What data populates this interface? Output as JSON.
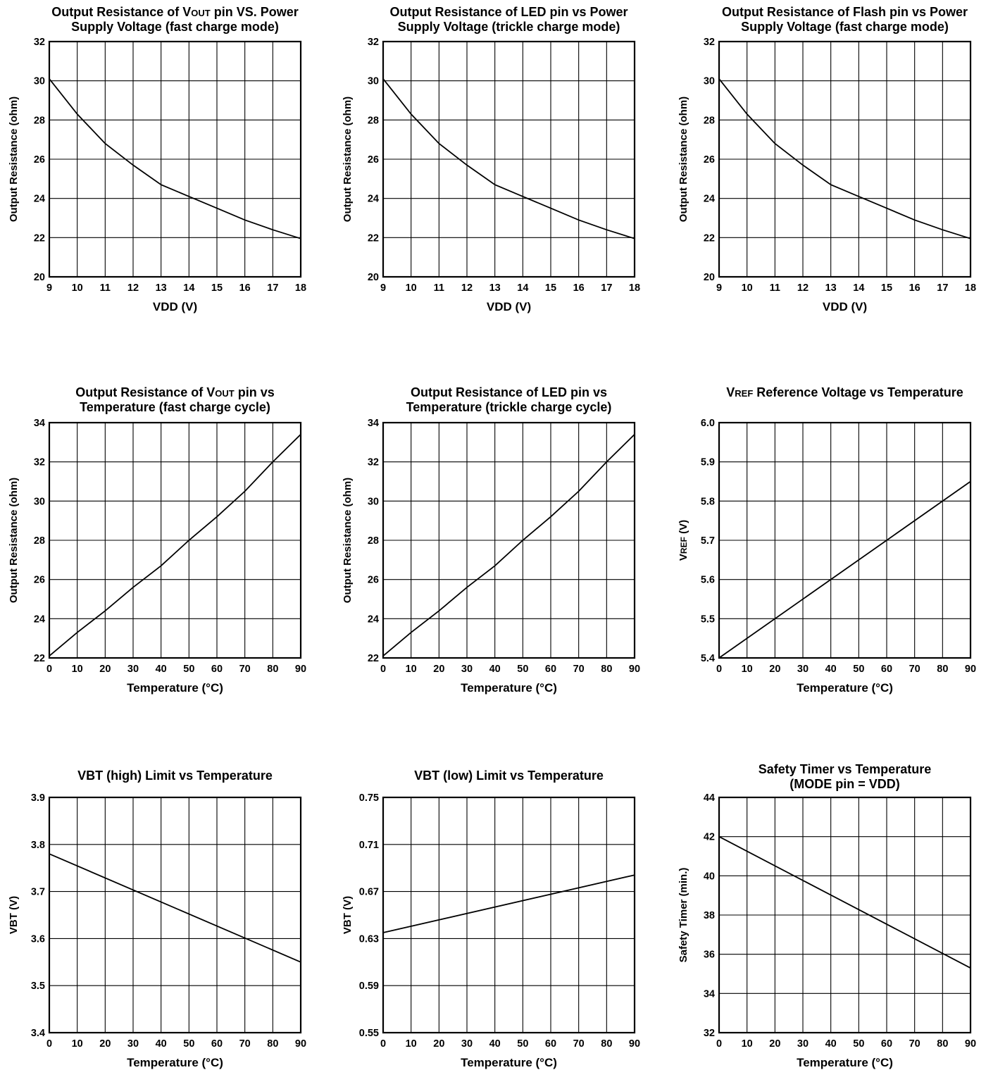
{
  "chart_data": [
    {
      "type": "line",
      "title_lines": [
        {
          "parts": [
            {
              "t": "Output Resistance of V"
            },
            {
              "t": "OUT",
              "sc": true
            },
            {
              "t": " pin VS. Power"
            }
          ]
        },
        {
          "parts": [
            {
              "t": "Supply Voltage (fast charge mode)"
            }
          ]
        }
      ],
      "xlabel": "VDD (V)",
      "ylabel": [
        {
          "t": "Output Resistance (ohm)"
        }
      ],
      "xlim": [
        9,
        18
      ],
      "ylim": [
        20,
        32
      ],
      "xticks": [
        "9",
        "10",
        "11",
        "12",
        "13",
        "14",
        "15",
        "16",
        "17",
        "18"
      ],
      "yticks": [
        "20",
        "22",
        "24",
        "26",
        "28",
        "30",
        "32"
      ],
      "grid": true,
      "series": [
        {
          "x": [
            9,
            10,
            11,
            12,
            13,
            14,
            15,
            16,
            17,
            18
          ],
          "y": [
            30.1,
            28.3,
            26.8,
            25.7,
            24.7,
            24.1,
            23.5,
            22.9,
            22.4,
            21.95
          ]
        }
      ]
    },
    {
      "type": "line",
      "title_lines": [
        {
          "parts": [
            {
              "t": "Output Resistance of LED pin vs Power"
            }
          ]
        },
        {
          "parts": [
            {
              "t": "Supply Voltage (trickle charge mode)"
            }
          ]
        }
      ],
      "xlabel": "VDD (V)",
      "ylabel": [
        {
          "t": "Output Resistance (ohm)"
        }
      ],
      "xlim": [
        9,
        18
      ],
      "ylim": [
        20,
        32
      ],
      "xticks": [
        "9",
        "10",
        "11",
        "12",
        "13",
        "14",
        "15",
        "16",
        "17",
        "18"
      ],
      "yticks": [
        "20",
        "22",
        "24",
        "26",
        "28",
        "30",
        "32"
      ],
      "grid": true,
      "series": [
        {
          "x": [
            9,
            10,
            11,
            12,
            13,
            14,
            15,
            16,
            17,
            18
          ],
          "y": [
            30.1,
            28.3,
            26.8,
            25.7,
            24.7,
            24.1,
            23.5,
            22.9,
            22.4,
            21.95
          ]
        }
      ]
    },
    {
      "type": "line",
      "title_lines": [
        {
          "parts": [
            {
              "t": "Output Resistance of Flash pin vs Power"
            }
          ]
        },
        {
          "parts": [
            {
              "t": "Supply Voltage (fast charge mode)"
            }
          ]
        }
      ],
      "xlabel": "VDD (V)",
      "ylabel": [
        {
          "t": "Output Resistance (ohm)"
        }
      ],
      "xlim": [
        9,
        18
      ],
      "ylim": [
        20,
        32
      ],
      "xticks": [
        "9",
        "10",
        "11",
        "12",
        "13",
        "14",
        "15",
        "16",
        "17",
        "18"
      ],
      "yticks": [
        "20",
        "22",
        "24",
        "26",
        "28",
        "30",
        "32"
      ],
      "grid": true,
      "series": [
        {
          "x": [
            9,
            10,
            11,
            12,
            13,
            14,
            15,
            16,
            17,
            18
          ],
          "y": [
            30.1,
            28.3,
            26.8,
            25.7,
            24.7,
            24.1,
            23.5,
            22.9,
            22.4,
            21.95
          ]
        }
      ]
    },
    {
      "type": "line",
      "title_lines": [
        {
          "parts": [
            {
              "t": "Output Resistance of V"
            },
            {
              "t": "OUT",
              "sc": true
            },
            {
              "t": " pin vs"
            }
          ]
        },
        {
          "parts": [
            {
              "t": "Temperature (fast charge cycle)"
            }
          ]
        }
      ],
      "xlabel": "Temperature (°C)",
      "ylabel": [
        {
          "t": "Output Resistance (ohm)"
        }
      ],
      "xlim": [
        0,
        90
      ],
      "ylim": [
        22,
        34
      ],
      "xticks": [
        "0",
        "10",
        "20",
        "30",
        "40",
        "50",
        "60",
        "70",
        "80",
        "90"
      ],
      "yticks": [
        "22",
        "24",
        "26",
        "28",
        "30",
        "32",
        "34"
      ],
      "grid": true,
      "series": [
        {
          "x": [
            0,
            10,
            20,
            30,
            40,
            50,
            60,
            70,
            80,
            90
          ],
          "y": [
            22.1,
            23.3,
            24.4,
            25.6,
            26.7,
            28.0,
            29.2,
            30.5,
            32.0,
            33.4
          ]
        }
      ]
    },
    {
      "type": "line",
      "title_lines": [
        {
          "parts": [
            {
              "t": "Output Resistance of LED pin vs"
            }
          ]
        },
        {
          "parts": [
            {
              "t": "Temperature (trickle charge cycle)"
            }
          ]
        }
      ],
      "xlabel": "Temperature (°C)",
      "ylabel": [
        {
          "t": "Output Resistance (ohm)"
        }
      ],
      "xlim": [
        0,
        90
      ],
      "ylim": [
        22,
        34
      ],
      "xticks": [
        "0",
        "10",
        "20",
        "30",
        "40",
        "50",
        "60",
        "70",
        "80",
        "90"
      ],
      "yticks": [
        "22",
        "24",
        "26",
        "28",
        "30",
        "32",
        "34"
      ],
      "grid": true,
      "series": [
        {
          "x": [
            0,
            10,
            20,
            30,
            40,
            50,
            60,
            70,
            80,
            90
          ],
          "y": [
            22.1,
            23.3,
            24.4,
            25.6,
            26.7,
            28.0,
            29.2,
            30.5,
            32.0,
            33.4
          ]
        }
      ]
    },
    {
      "type": "line",
      "title_lines": [
        {
          "parts": [
            {
              "t": "V"
            },
            {
              "t": "REF",
              "sc": true
            },
            {
              "t": " Reference Voltage vs Temperature"
            }
          ]
        }
      ],
      "xlabel": "Temperature (°C)",
      "ylabel": [
        {
          "t": "V"
        },
        {
          "t": "REF",
          "sc": true
        },
        {
          "t": " (V)"
        }
      ],
      "xlim": [
        0,
        90
      ],
      "ylim": [
        5.4,
        6.0
      ],
      "xticks": [
        "0",
        "10",
        "20",
        "30",
        "40",
        "50",
        "60",
        "70",
        "80",
        "90"
      ],
      "yticks": [
        "5.4",
        "5.5",
        "5.6",
        "5.7",
        "5.8",
        "5.9",
        "6.0"
      ],
      "grid": true,
      "series": [
        {
          "x": [
            0,
            90
          ],
          "y": [
            5.4,
            5.85
          ]
        }
      ]
    },
    {
      "type": "line",
      "title_lines": [
        {
          "parts": [
            {
              "t": "VBT (high) Limit vs Temperature"
            }
          ]
        }
      ],
      "xlabel": "Temperature (°C)",
      "ylabel": [
        {
          "t": "VBT (V)"
        }
      ],
      "xlim": [
        0,
        90
      ],
      "ylim": [
        3.4,
        3.9
      ],
      "xticks": [
        "0",
        "10",
        "20",
        "30",
        "40",
        "50",
        "60",
        "70",
        "80",
        "90"
      ],
      "yticks": [
        "3.4",
        "3.5",
        "3.6",
        "3.7",
        "3.8",
        "3.9"
      ],
      "grid": true,
      "series": [
        {
          "x": [
            0,
            90
          ],
          "y": [
            3.78,
            3.55
          ]
        }
      ]
    },
    {
      "type": "line",
      "title_lines": [
        {
          "parts": [
            {
              "t": "VBT (low) Limit vs Temperature"
            }
          ]
        }
      ],
      "xlabel": "Temperature (°C)",
      "ylabel": [
        {
          "t": "VBT (V)"
        }
      ],
      "xlim": [
        0,
        90
      ],
      "ylim": [
        0.55,
        0.75
      ],
      "xticks": [
        "0",
        "10",
        "20",
        "30",
        "40",
        "50",
        "60",
        "70",
        "80",
        "90"
      ],
      "yticks": [
        "0.55",
        "0.59",
        "0.63",
        "0.67",
        "0.71",
        "0.75"
      ],
      "grid": true,
      "series": [
        {
          "x": [
            0,
            90
          ],
          "y": [
            0.635,
            0.684
          ]
        }
      ]
    },
    {
      "type": "line",
      "title_lines": [
        {
          "parts": [
            {
              "t": "Safety Timer vs Temperature"
            }
          ]
        },
        {
          "parts": [
            {
              "t": "(MODE pin = VDD)"
            }
          ]
        }
      ],
      "xlabel": "Temperature (°C)",
      "ylabel": [
        {
          "t": "Safety Timer (min.)"
        }
      ],
      "xlim": [
        0,
        90
      ],
      "ylim": [
        32,
        44
      ],
      "xticks": [
        "0",
        "10",
        "20",
        "30",
        "40",
        "50",
        "60",
        "70",
        "80",
        "90"
      ],
      "yticks": [
        "32",
        "34",
        "36",
        "38",
        "40",
        "42",
        "44"
      ],
      "grid": true,
      "series": [
        {
          "x": [
            0,
            90
          ],
          "y": [
            42.0,
            35.3
          ]
        }
      ]
    }
  ]
}
